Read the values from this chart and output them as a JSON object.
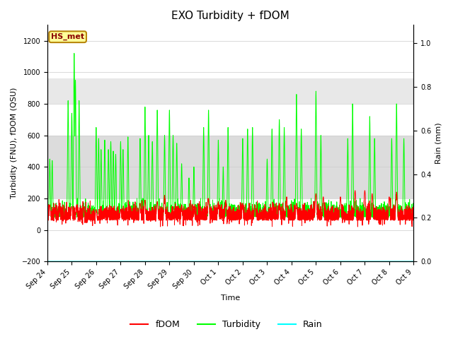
{
  "title": "EXO Turbidity + fDOM",
  "xlabel": "Time",
  "ylabel_left": "Turbidity (FNU), fDOM (QSU)",
  "ylabel_right": "Rain (mm)",
  "ylim_left": [
    -200,
    1300
  ],
  "ylim_right": [
    0.0,
    1.083333
  ],
  "yticks_left": [
    -200,
    0,
    200,
    400,
    600,
    800,
    1000,
    1200
  ],
  "yticks_right": [
    0.0,
    0.2,
    0.4,
    0.6,
    0.8,
    1.0
  ],
  "xtick_labels": [
    "Sep 24",
    "Sep 25",
    "Sep 26",
    "Sep 27",
    "Sep 28",
    "Sep 29",
    "Sep 30",
    "Oct 1",
    "Oct 2",
    "Oct 3",
    "Oct 4",
    "Oct 5",
    "Oct 6",
    "Oct 7",
    "Oct 8",
    "Oct 9"
  ],
  "shaded_band_lower": [
    200,
    600
  ],
  "shaded_band_upper": [
    800,
    960
  ],
  "shaded_color_lower": "#dcdcdc",
  "shaded_color_upper": "#e8e8e8",
  "fdom_color": "#ff0000",
  "turbidity_color": "#00ff00",
  "rain_color": "#00ffff",
  "annotation_text": "HS_met",
  "annotation_box_color": "#ffff99",
  "annotation_text_color": "#8b0000",
  "annotation_border_color": "#b8860b",
  "background_color": "#ffffff",
  "legend_fdom": "fDOM",
  "legend_turbidity": "Turbidity",
  "legend_rain": "Rain",
  "n_points": 5000,
  "n_days": 15
}
